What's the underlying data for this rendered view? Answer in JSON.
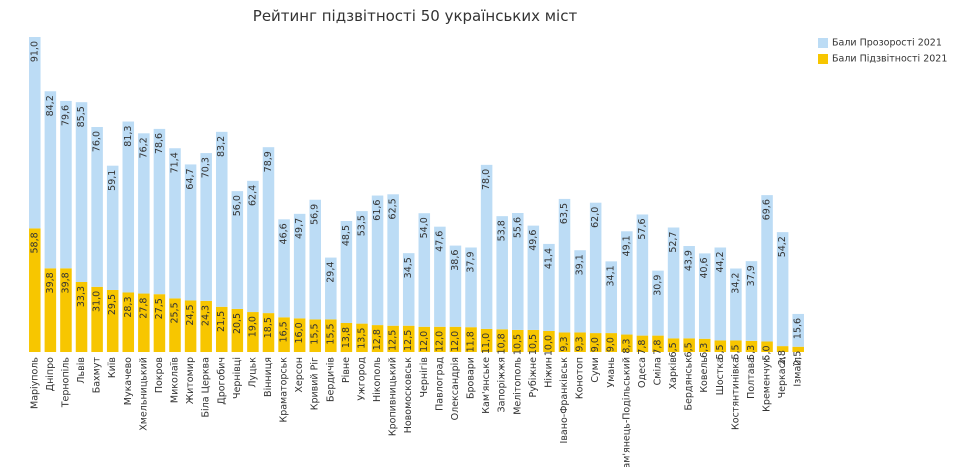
{
  "chart_data": {
    "type": "stacked_bar",
    "title": "Рейтинг підзвітності 50 українських міст",
    "categories": [
      "Маріуполь",
      "Дніпро",
      "Тернопіль",
      "Львів",
      "Бахмут",
      "Київ",
      "Мукачево",
      "Хмельницький",
      "Покров",
      "Миколаїв",
      "Житомир",
      "Біла Церква",
      "Дрогобич",
      "Чернівці",
      "Луцьк",
      "Вінниця",
      "Краматорськ",
      "Херсон",
      "Кривий Ріг",
      "Бердичів",
      "Рівне",
      "Ужгород",
      "Нікополь",
      "Кропивницький",
      "Новомосковськ",
      "Чернігів",
      "Павлоград",
      "Олександрія",
      "Бровари",
      "Кам'янське",
      "Запоріжжя",
      "Мелітополь",
      "Рубіжне",
      "Ніжин",
      "Івано-Франківськ",
      "Конотоп",
      "Суми",
      "Умань",
      "Кам'янець-Подільський",
      "Одеса",
      "Сміла",
      "Харків",
      "Бердянськ",
      "Ковель",
      "Шостка",
      "Костянтинівка",
      "Полтава",
      "Кременчук",
      "Черкаси",
      "Ізмаїл"
    ],
    "series": [
      {
        "name": "Бали Підзвітності 2021",
        "color": "#f7c600",
        "values": [
          58.8,
          39.8,
          39.8,
          33.3,
          31.0,
          29.5,
          28.3,
          27.8,
          27.5,
          25.5,
          24.5,
          24.3,
          21.5,
          20.5,
          19.0,
          18.5,
          16.5,
          16.0,
          15.5,
          15.5,
          13.8,
          13.5,
          12.8,
          12.5,
          12.5,
          12.0,
          12.0,
          12.0,
          11.8,
          11.0,
          10.8,
          10.5,
          10.5,
          10.0,
          9.3,
          9.3,
          9.0,
          9.0,
          8.3,
          7.8,
          7.8,
          6.5,
          6.5,
          6.3,
          5.5,
          5.5,
          5.3,
          5.0,
          2.8,
          2.5
        ],
        "value_labels": [
          "58,8",
          "39,8",
          "39,8",
          "33,3",
          "31,0",
          "29,5",
          "28,3",
          "27,8",
          "27,5",
          "25,5",
          "24,5",
          "24,3",
          "21,5",
          "20,5",
          "19,0",
          "18,5",
          "16,5",
          "16,0",
          "15,5",
          "15,5",
          "13,8",
          "13,5",
          "12,8",
          "12,5",
          "12,5",
          "12,0",
          "12,0",
          "12,0",
          "11,8",
          "11,0",
          "10,8",
          "10,5",
          "10,5",
          "10,0",
          "9,3",
          "9,3",
          "9,0",
          "9,0",
          "8,3",
          "7,8",
          "7,8",
          "6,5",
          "6,5",
          "6,3",
          "5,5",
          "5,5",
          "5,3",
          "5,0",
          "2,8",
          "2,5"
        ]
      },
      {
        "name": "Бали Прозорості 2021",
        "color": "#bcdcf5",
        "values": [
          91.0,
          84.2,
          79.6,
          85.5,
          76.0,
          59.1,
          81.3,
          76.2,
          78.6,
          71.4,
          64.7,
          70.3,
          83.2,
          56.0,
          62.4,
          78.9,
          46.6,
          49.7,
          56.9,
          29.4,
          48.5,
          53.5,
          61.6,
          62.5,
          34.5,
          54.0,
          47.6,
          38.6,
          37.9,
          78.0,
          53.8,
          55.6,
          49.6,
          41.4,
          63.5,
          39.1,
          62.0,
          34.1,
          49.1,
          57.6,
          30.9,
          52.7,
          43.9,
          40.6,
          44.2,
          34.2,
          37.9,
          69.6,
          54.2,
          15.6
        ],
        "value_labels": [
          "91,0",
          "84,2",
          "79,6",
          "85,5",
          "76,0",
          "59,1",
          "81,3",
          "76,2",
          "78,6",
          "71,4",
          "64,7",
          "70,3",
          "83,2",
          "56,0",
          "62,4",
          "78,9",
          "46,6",
          "49,7",
          "56,9",
          "29,4",
          "48,5",
          "53,5",
          "61,6",
          "62,5",
          "34,5",
          "54,0",
          "47,6",
          "38,6",
          "37,9",
          "78,0",
          "53,8",
          "55,6",
          "49,6",
          "41,4",
          "63,5",
          "39,1",
          "62,0",
          "34,1",
          "49,1",
          "57,6",
          "30,9",
          "52,7",
          "43,9",
          "40,6",
          "44,2",
          "34,2",
          "37,9",
          "69,6",
          "54,2",
          "15,6"
        ]
      }
    ],
    "legend_order": [
      1,
      0
    ]
  }
}
